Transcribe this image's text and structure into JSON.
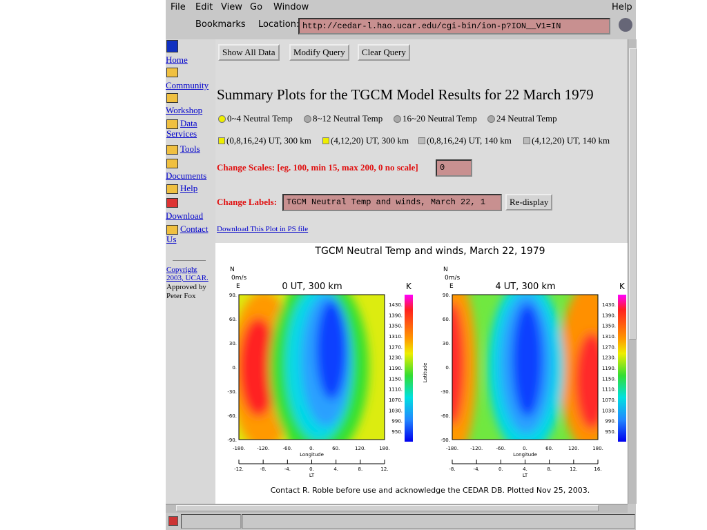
{
  "menu": [
    "File",
    "Edit",
    "View",
    "Go",
    "Window"
  ],
  "help": "Help",
  "toolbar": {
    "bookmarks": "Bookmarks",
    "location_label": "Location:",
    "url": "http://cedar-l.hao.ucar.edu/cgi-bin/ion-p?ION__V1=IN"
  },
  "sidebar": {
    "links": [
      "Home",
      "Community",
      "Workshop",
      "Data Services",
      "Tools",
      "Documents",
      "Help",
      "Download",
      "Contact Us"
    ],
    "copyright": "Copyright 2003, UCAR.",
    "approved": "Approved by Peter Fox"
  },
  "buttons": [
    "Show All Data",
    "Modify Query",
    "Clear Query"
  ],
  "heading": "Summary Plots for the TGCM Model Results for 22 March 1979",
  "radio_options": [
    "0~4 Neutral Temp",
    "8~12 Neutral Temp",
    "16~20 Neutral Temp",
    "24 Neutral Temp"
  ],
  "check_options": [
    "(0,8,16,24) UT, 300 km",
    "(4,12,20) UT, 300 km",
    "(0,8,16,24) UT, 140 km",
    "(4,12,20) UT, 140 km"
  ],
  "change_scales": {
    "label": "Change Scales: [eg. 100, min 15, max 200, 0 no scale]",
    "value": "0"
  },
  "change_labels": {
    "label": "Change Labels:",
    "value": "TGCM Neutral Temp and winds, March 22, 1",
    "button": "Re-display"
  },
  "download_link": "Download This Plot in PS file",
  "figure": {
    "title": "TGCM Neutral Temp and winds, March 22, 1979",
    "north": "N",
    "wind_scale": "0m/s",
    "east": "E",
    "unit": "K",
    "panels": [
      {
        "title": "0 UT, 300 km",
        "lt_ticks": [
          "-12.",
          "-8.",
          "-4.",
          "0.",
          "4.",
          "8.",
          "12."
        ]
      },
      {
        "title": "4 UT, 300 km",
        "lt_ticks": [
          "-8.",
          "-4.",
          "0.",
          "4.",
          "8.",
          "12.",
          "16."
        ]
      }
    ],
    "lat_ticks": [
      "90.",
      "60.",
      "30.",
      "0.",
      "-30.",
      "-60.",
      "-90."
    ],
    "lon_ticks": [
      "-180.",
      "-120.",
      "-60.",
      "0.",
      "60.",
      "120.",
      "180."
    ],
    "x_label": "Longitude",
    "lt_label": "LT",
    "y_label": "Latitude",
    "colorbar": [
      "1430.",
      "1390.",
      "1350.",
      "1310.",
      "1270.",
      "1230.",
      "1190.",
      "1150.",
      "1110.",
      "1070.",
      "1030.",
      "990.",
      "950."
    ],
    "footer": "Contact R. Roble before use and acknowledge the CEDAR DB.  Plotted Nov 25, 2003."
  }
}
